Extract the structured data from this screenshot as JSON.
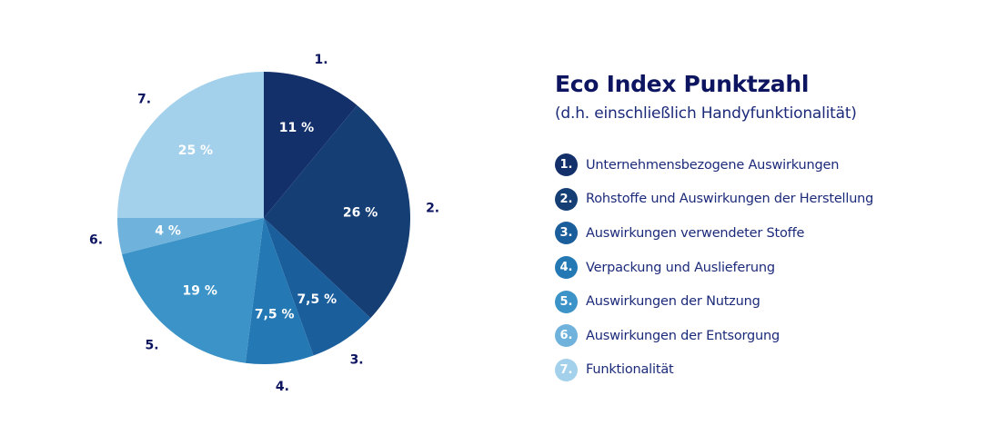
{
  "chart_data": {
    "type": "pie",
    "title": "Eco Index Punktzahl",
    "subtitle": "(d.h. einschließlich Handyfunktionalität)",
    "slices": [
      {
        "number": "1.",
        "label": "Unternehmensbezogene Auswirkungen",
        "value": 11,
        "value_label": "11 %",
        "color": "#14306a"
      },
      {
        "number": "2.",
        "label": "Rohstoffe und Auswirkungen der Herstellung",
        "value": 26,
        "value_label": "26 %",
        "color": "#153e75"
      },
      {
        "number": "3.",
        "label": "Auswirkungen verwendeter Stoffe",
        "value": 7.5,
        "value_label": "7,5 %",
        "color": "#1b5e9c"
      },
      {
        "number": "4.",
        "label": "Verpackung und Auslieferung",
        "value": 7.5,
        "value_label": "7,5 %",
        "color": "#2478b4"
      },
      {
        "number": "5.",
        "label": "Auswirkungen der Nutzung",
        "value": 19,
        "value_label": "19 %",
        "color": "#3b93c8"
      },
      {
        "number": "6.",
        "label": "Auswirkungen der Entsorgung",
        "value": 4,
        "value_label": "4 %",
        "color": "#6fb2dc"
      },
      {
        "number": "7.",
        "label": "Funktionalität",
        "value": 25,
        "value_label": "25 %",
        "color": "#a3d0eb"
      }
    ]
  }
}
